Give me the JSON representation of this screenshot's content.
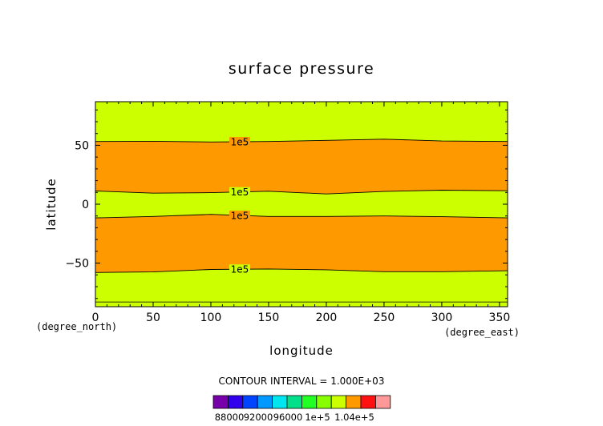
{
  "chart_data": {
    "type": "contour",
    "title": "surface pressure",
    "xlabel": "longitude",
    "ylabel": "latitude",
    "x_units": "(degree_east)",
    "y_units": "(degree_north)",
    "xlim": [
      0,
      357
    ],
    "ylim": [
      -87,
      87
    ],
    "x_ticks": [
      0,
      50,
      100,
      150,
      200,
      250,
      300,
      350
    ],
    "x_tick_labels": [
      "0",
      "50",
      "100",
      "150",
      "200",
      "250",
      "300",
      "350"
    ],
    "y_ticks": [
      50,
      0,
      -50
    ],
    "y_tick_labels": [
      "50",
      "0",
      "−50"
    ],
    "contour_interval_text": "CONTOUR INTERVAL = 1.000E+03",
    "contour_label": "1e5",
    "contour_label_lon": 125,
    "contours": [
      {
        "level": 100000,
        "lon": [
          0,
          50,
          100,
          150,
          200,
          250,
          300,
          357
        ],
        "lat": [
          53.2,
          53.4,
          52.8,
          53.2,
          54.2,
          55.2,
          53.6,
          53.2
        ]
      },
      {
        "level": 100000,
        "lon": [
          0,
          50,
          100,
          150,
          200,
          250,
          300,
          357
        ],
        "lat": [
          11.2,
          9.4,
          9.8,
          11.0,
          8.7,
          10.8,
          11.9,
          11.4
        ]
      },
      {
        "level": 100000,
        "lon": [
          0,
          50,
          100,
          150,
          200,
          250,
          300,
          357
        ],
        "lat": [
          -11.6,
          -10.4,
          -8.6,
          -10.4,
          -10.4,
          -10.0,
          -10.6,
          -11.6
        ]
      },
      {
        "level": 100000,
        "lon": [
          0,
          50,
          100,
          150,
          200,
          250,
          300,
          357
        ],
        "lat": [
          -58.0,
          -57.5,
          -55.4,
          -55.0,
          -55.7,
          -57.3,
          -57.3,
          -56.5
        ]
      }
    ],
    "bands": [
      {
        "from_contour": "top",
        "to_contour": 0,
        "color": "#ccff00"
      },
      {
        "from_contour": 0,
        "to_contour": 1,
        "color": "#ff9900"
      },
      {
        "from_contour": 1,
        "to_contour": 2,
        "color": "#ccff00"
      },
      {
        "from_contour": 2,
        "to_contour": 3,
        "color": "#ff9900"
      },
      {
        "from_contour": 3,
        "to_contour": "bottom",
        "color": "#ccff00"
      }
    ],
    "bottom_line_lat": -83,
    "colorbar": {
      "colors": [
        "#7700aa",
        "#3300ee",
        "#0044ff",
        "#0099ff",
        "#00e5ee",
        "#00e08a",
        "#22ff22",
        "#88ff00",
        "#ccff00",
        "#ff9900",
        "#ff1111",
        "#ff9999"
      ],
      "labels": [
        "88000",
        "92000",
        "96000",
        "1e+5",
        "1.04e+5"
      ]
    }
  }
}
